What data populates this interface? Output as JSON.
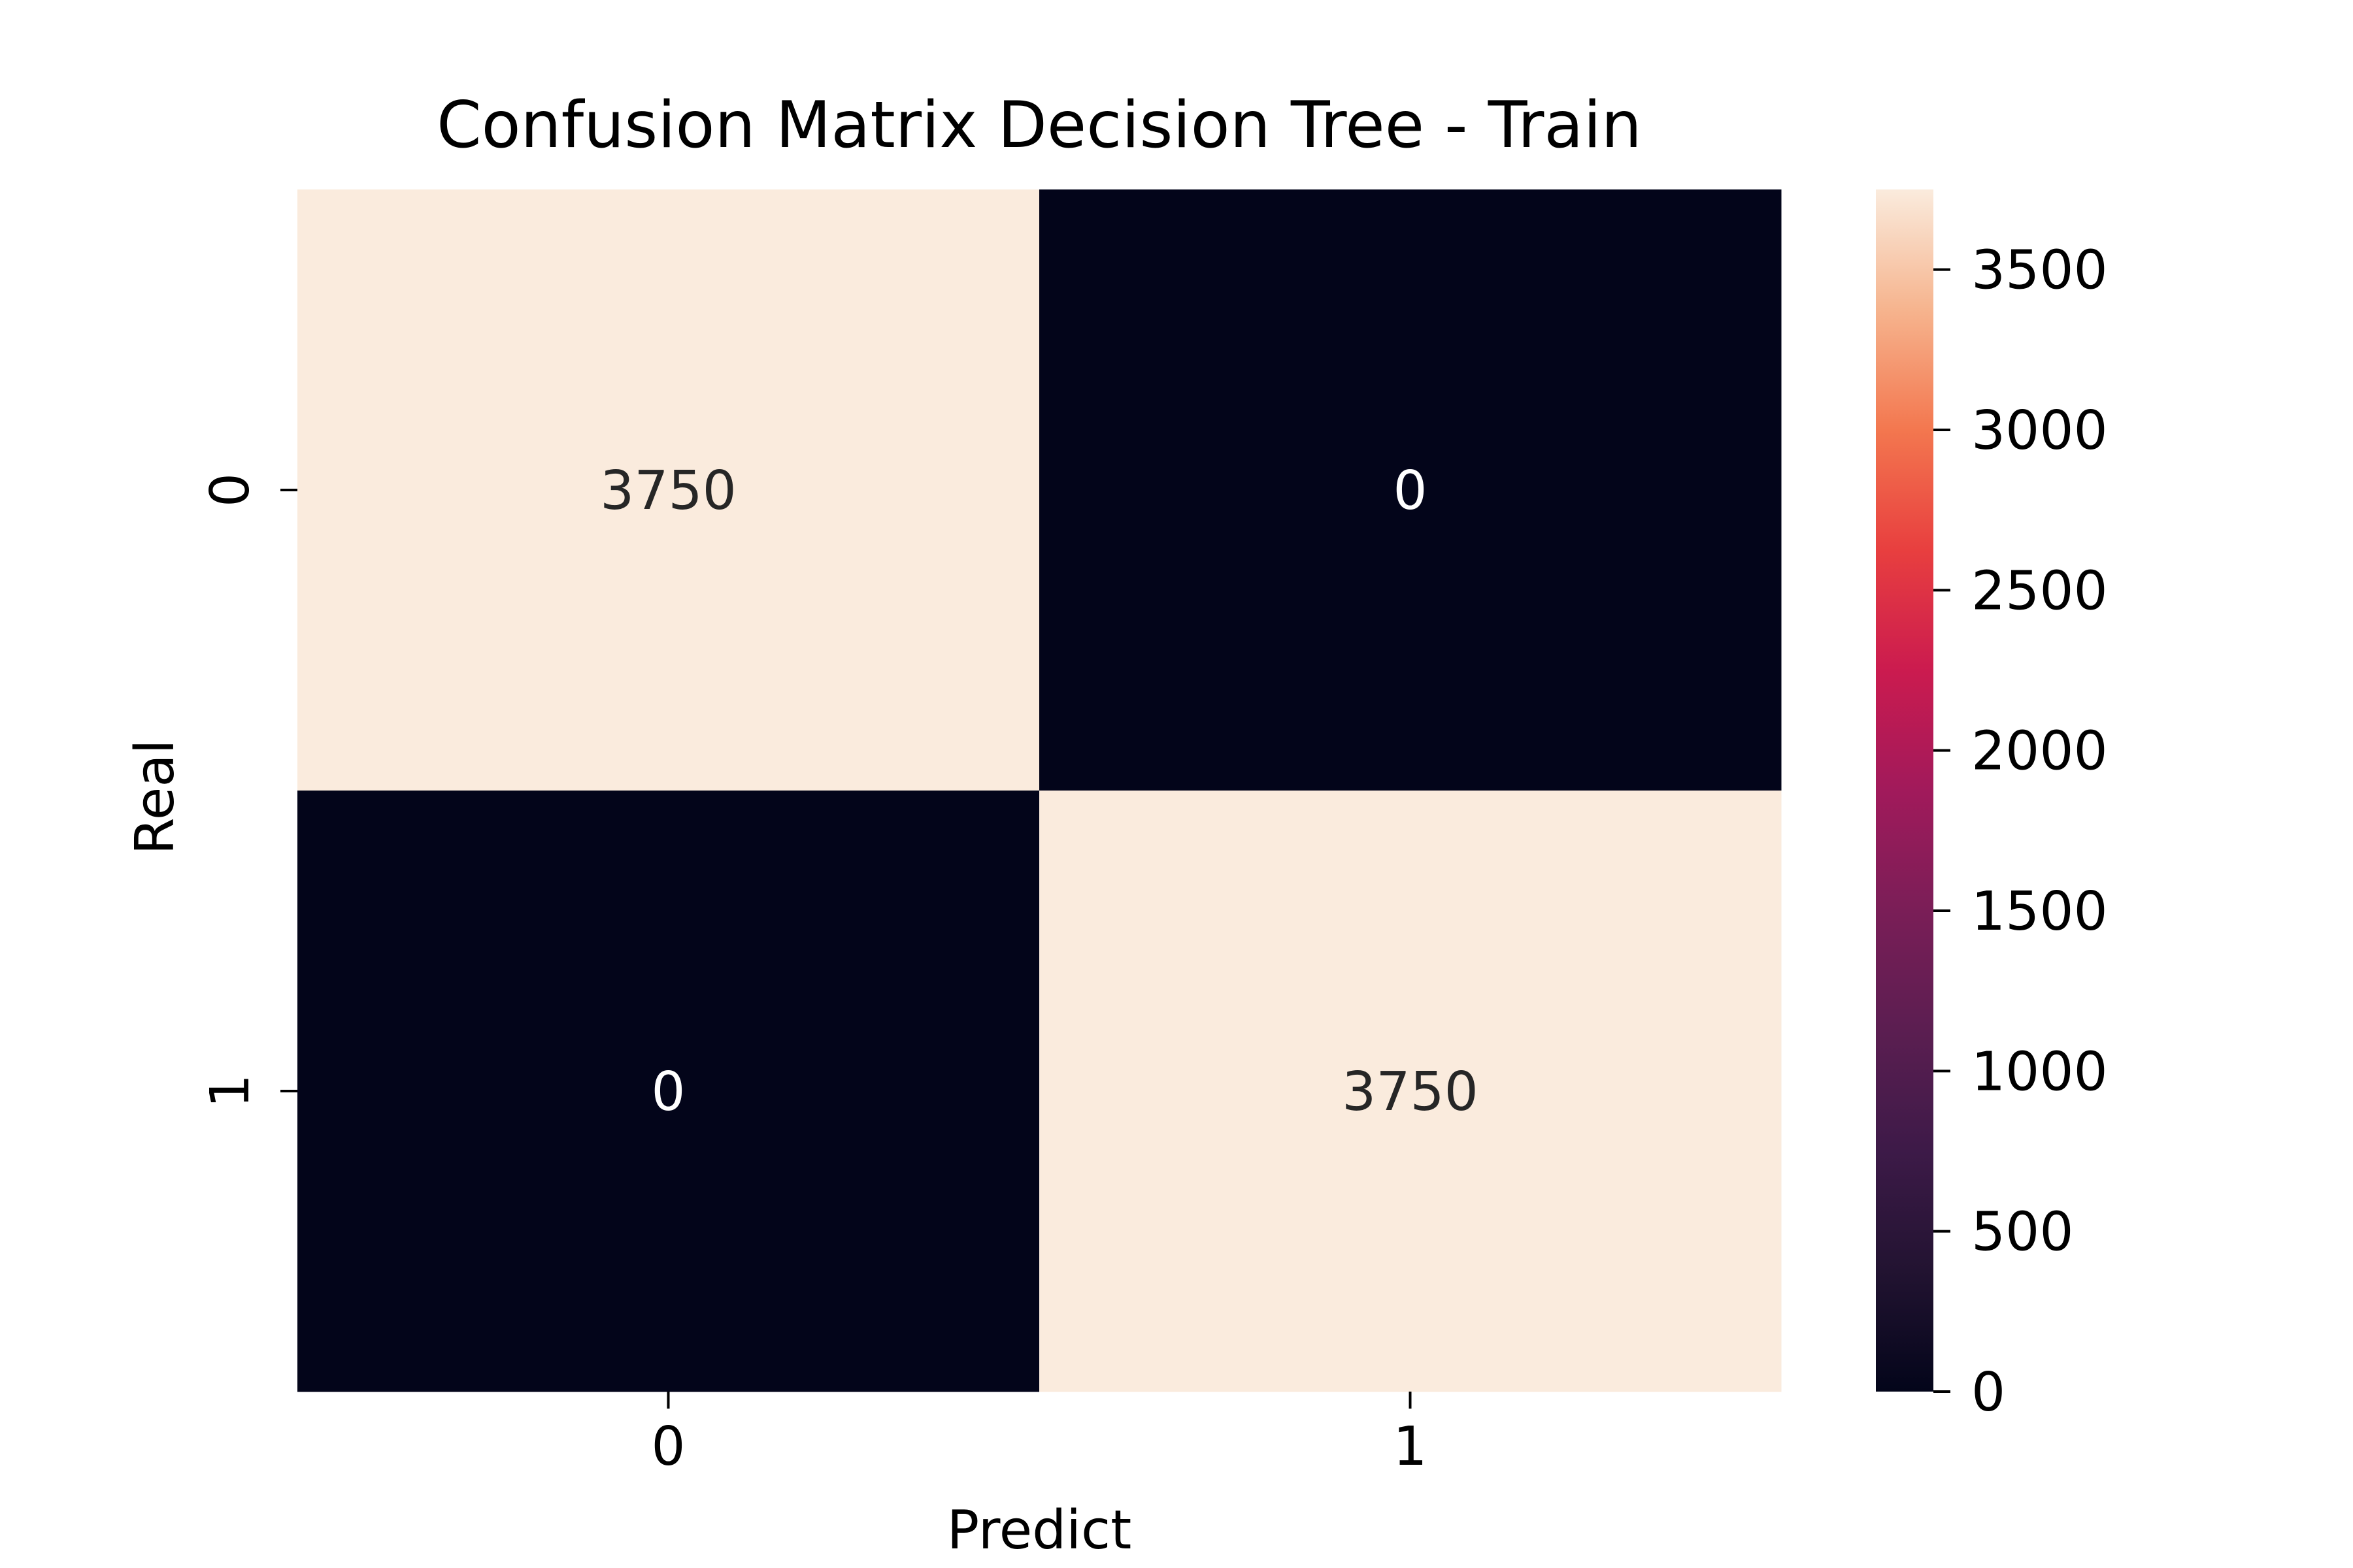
{
  "chart_data": {
    "type": "heatmap",
    "title": "Confusion Matrix Decision Tree - Train",
    "xlabel": "Predict",
    "ylabel": "Real",
    "x_categories": [
      "0",
      "1"
    ],
    "y_categories": [
      "0",
      "1"
    ],
    "values": [
      [
        3750,
        0
      ],
      [
        0,
        3750
      ]
    ],
    "value_labels": [
      [
        "3750",
        "0"
      ],
      [
        "0",
        "3750"
      ]
    ],
    "colormap": "rocket",
    "colorbar": {
      "vmin": 0,
      "vmax": 3750,
      "ticks": [
        0,
        500,
        1000,
        1500,
        2000,
        2500,
        3000,
        3500
      ],
      "tick_labels": [
        "0",
        "500",
        "1000",
        "1500",
        "2000",
        "2500",
        "3000",
        "3500"
      ]
    },
    "colors": {
      "low": "#03051a",
      "high": "#faebdd",
      "dark_text": "#262626",
      "light_text": "#ffffff"
    }
  }
}
